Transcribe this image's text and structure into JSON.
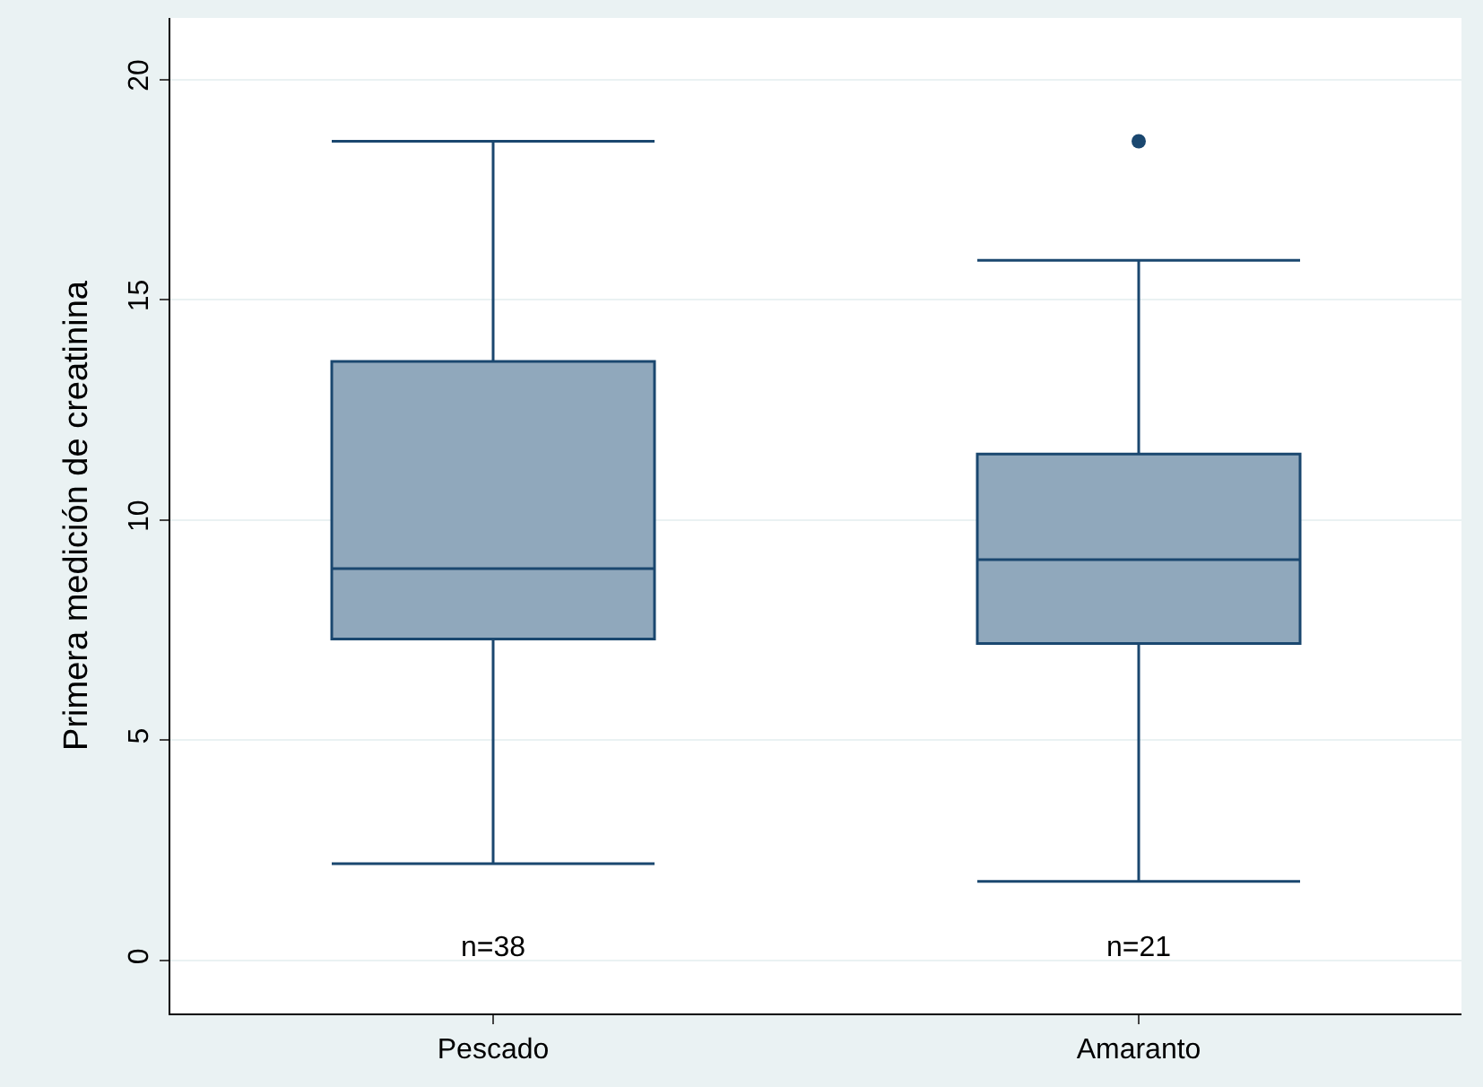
{
  "chart_data": {
    "type": "box",
    "ylabel": "Primera medición de creatinina",
    "categories": [
      "Pescado",
      "Amaranto"
    ],
    "series": [
      {
        "color": "#90a8bc",
        "boxes": [
          {
            "low": 2.2,
            "q1": 7.3,
            "median": 8.9,
            "q3": 13.6,
            "high": 18.6
          },
          {
            "low": 1.8,
            "q1": 7.2,
            "median": 9.1,
            "q3": 11.5,
            "high": 15.9,
            "outliers": [
              18.6
            ]
          }
        ]
      }
    ],
    "color": "#1a476f",
    "annotations": [
      "n=38",
      "n=21"
    ],
    "ylim": [
      -1.2,
      21.4
    ],
    "yticks": [
      0,
      5,
      10,
      15,
      20
    ],
    "grid": "y"
  }
}
